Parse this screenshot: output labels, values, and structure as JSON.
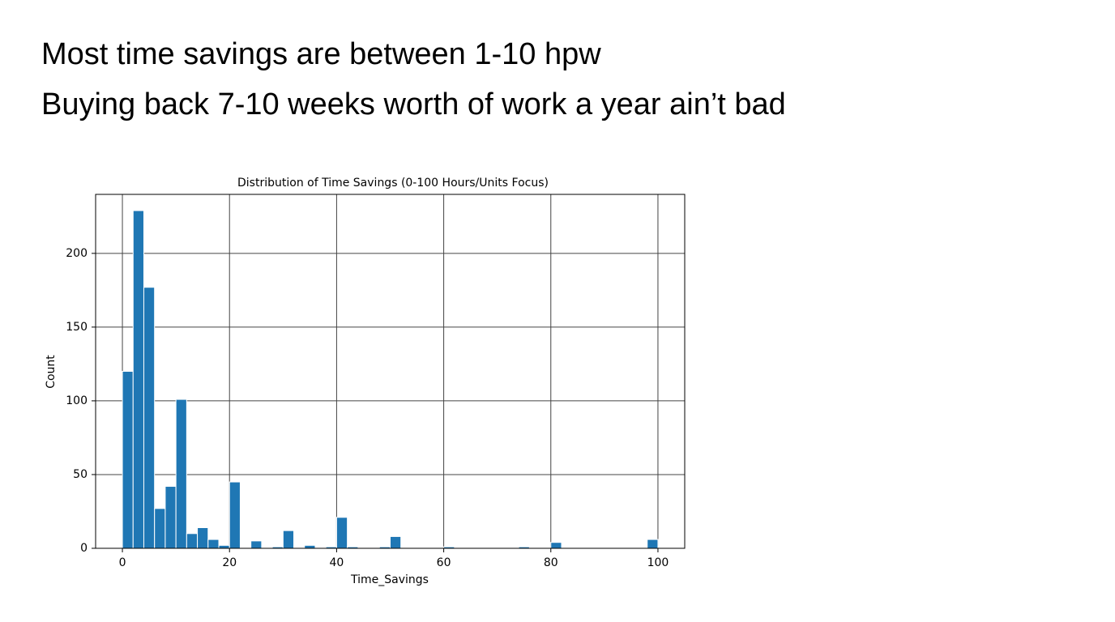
{
  "slide": {
    "lines": [
      "Most time savings are between 1-10 hpw",
      "Buying back 7-10 weeks worth of work a year ain’t bad"
    ]
  },
  "chart_data": {
    "type": "histogram",
    "title": "Distribution of Time Savings (0-100 Hours/Units Focus)",
    "x_label": "Time_Savings",
    "y_label": "Count",
    "bins": [
      0,
      2,
      4,
      6,
      8,
      10,
      12,
      14,
      16,
      18,
      20,
      22,
      24,
      26,
      28,
      30,
      32,
      34,
      36,
      38,
      40,
      42,
      44,
      46,
      48,
      50,
      52,
      54,
      56,
      58,
      60,
      62,
      64,
      66,
      68,
      70,
      72,
      74,
      76,
      78,
      80,
      82,
      84,
      86,
      88,
      90,
      92,
      94,
      96,
      98,
      100
    ],
    "values": [
      120,
      229,
      177,
      27,
      42,
      101,
      10,
      14,
      6,
      2,
      45,
      0,
      5,
      0,
      1,
      12,
      0,
      2,
      0,
      1,
      21,
      1,
      0,
      0,
      1,
      8,
      0,
      0,
      0,
      0,
      1,
      0,
      0,
      0,
      0,
      0,
      0,
      1,
      0,
      0,
      4,
      0,
      0,
      0,
      0,
      0,
      0,
      0,
      0,
      6
    ],
    "color": "#1f77b4",
    "xlim": [
      -5,
      105
    ],
    "xticks": [
      0,
      20,
      40,
      60,
      80,
      100
    ],
    "ylim": [
      0,
      240
    ],
    "yticks": [
      0,
      50,
      100,
      150,
      200
    ],
    "grid": true
  }
}
